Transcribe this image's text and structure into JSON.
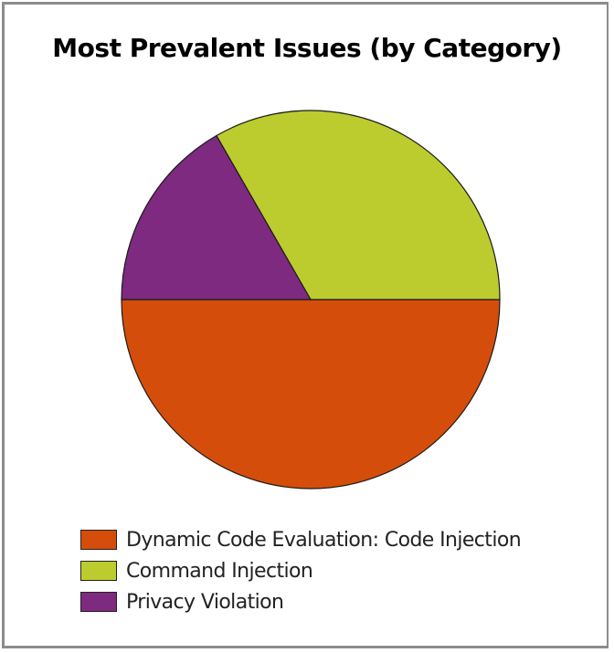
{
  "chart_data": {
    "type": "pie",
    "title": "Most Prevalent Issues (by Category)",
    "slices": [
      {
        "label": "Dynamic Code Evaluation: Code Injection",
        "value": 50,
        "color": "#d54d0b"
      },
      {
        "label": "Command Injection",
        "value": 33.3,
        "color": "#bccc2e"
      },
      {
        "label": "Privacy Violation",
        "value": 16.7,
        "color": "#7e2a80"
      }
    ],
    "legend_position": "bottom"
  }
}
